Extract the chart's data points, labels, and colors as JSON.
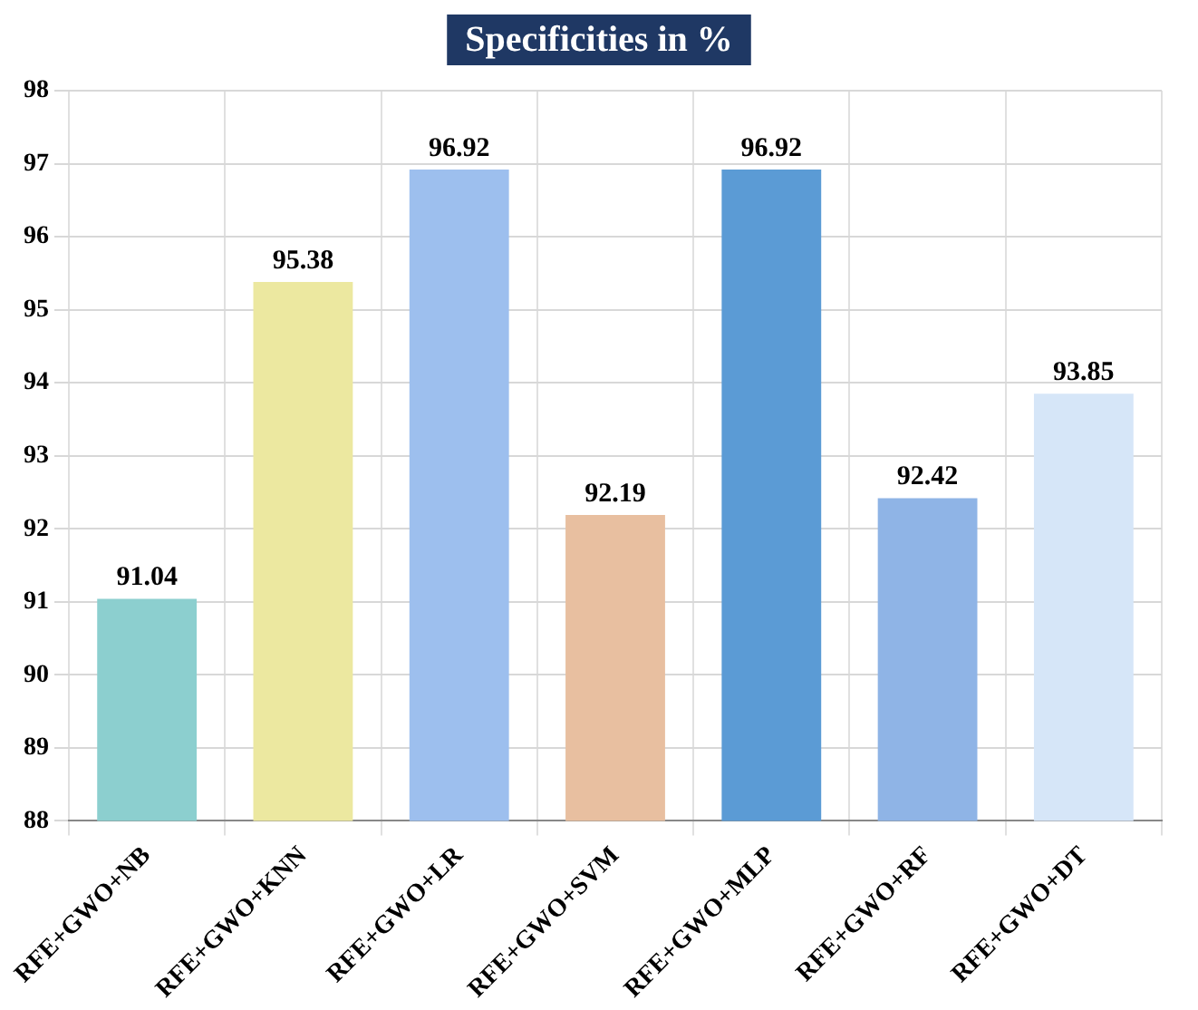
{
  "chart_data": {
    "type": "bar",
    "title": "Specificities in %",
    "categories": [
      "RFE+GWO+NB",
      "RFE+GWO+KNN",
      "RFE+GWO+LR",
      "RFE+GWO+SVM",
      "RFE+GWO+MLP",
      "RFE+GWO+RF",
      "RFE+GWO+DT"
    ],
    "values": [
      91.04,
      95.38,
      96.92,
      92.19,
      96.92,
      92.42,
      93.85
    ],
    "colors": [
      "#8ccfcf",
      "#ece8a0",
      "#9dbfee",
      "#e8bfa0",
      "#5b9bd5",
      "#8fb4e6",
      "#d6e6f8"
    ],
    "ylim": [
      88,
      98
    ],
    "yticks": [
      88,
      89,
      90,
      91,
      92,
      93,
      94,
      95,
      96,
      97,
      98
    ],
    "grid": true,
    "data_labels": true
  }
}
